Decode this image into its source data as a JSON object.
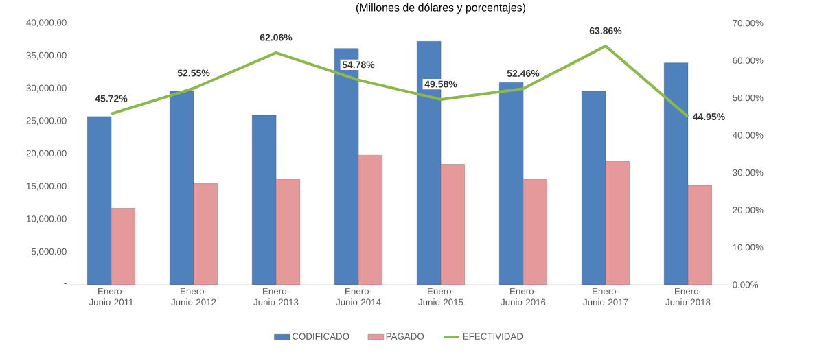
{
  "chart_data": {
    "type": "bar",
    "title": "(Millones de dólares y porcentajes)",
    "categories": [
      "Enero-Junio 2011",
      "Enero-Junio 2012",
      "Enero-Junio 2013",
      "Enero-Junio 2014",
      "Enero-Junio 2015",
      "Enero-Junio 2016",
      "Enero-Junio 2017",
      "Enero-Junio 2018"
    ],
    "series": [
      {
        "name": "CODIFICADO",
        "color": "#4f81bd",
        "values": [
          25700,
          29600,
          25900,
          36100,
          37200,
          30900,
          29600,
          33900
        ]
      },
      {
        "name": "PAGADO",
        "color": "#e6999a",
        "values": [
          11700,
          15500,
          16100,
          19800,
          18400,
          16100,
          18900,
          15200
        ]
      },
      {
        "name": "EFECTIVIDAD",
        "type": "line",
        "axis": "y2",
        "color": "#8cb84a",
        "values": [
          45.72,
          52.55,
          62.06,
          54.78,
          49.58,
          52.46,
          63.86,
          44.95
        ],
        "value_labels": [
          "45.72%",
          "52.55%",
          "62.06%",
          "54.78%",
          "49.58%",
          "52.46%",
          "63.86%",
          "44.95%"
        ]
      }
    ],
    "ylim": [
      0,
      40000
    ],
    "yticks": [
      {
        "value": 0,
        "label": "-"
      },
      {
        "value": 5000,
        "label": "5,000.00"
      },
      {
        "value": 10000,
        "label": "10,000.00"
      },
      {
        "value": 15000,
        "label": "15,000.00"
      },
      {
        "value": 20000,
        "label": "20,000.00"
      },
      {
        "value": 25000,
        "label": "25,000.00"
      },
      {
        "value": 30000,
        "label": "30,000.00"
      },
      {
        "value": 35000,
        "label": "35,000.00"
      },
      {
        "value": 40000,
        "label": "40,000.00"
      }
    ],
    "y2lim": [
      0,
      70
    ],
    "y2ticks": [
      {
        "value": 0,
        "label": "0.00%"
      },
      {
        "value": 10,
        "label": "10.00%"
      },
      {
        "value": 20,
        "label": "20.00%"
      },
      {
        "value": 30,
        "label": "30.00%"
      },
      {
        "value": 40,
        "label": "40.00%"
      },
      {
        "value": 50,
        "label": "50.00%"
      },
      {
        "value": 60,
        "label": "60.00%"
      },
      {
        "value": 70,
        "label": "70.00%"
      }
    ],
    "legend": "bottom"
  }
}
